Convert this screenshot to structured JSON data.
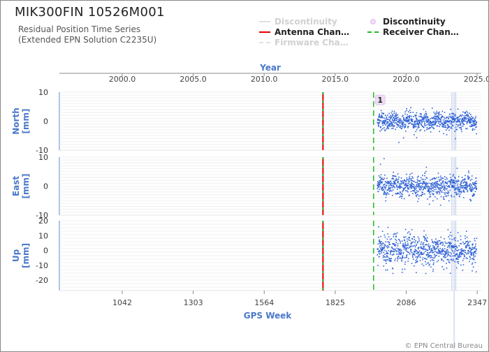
{
  "header": {
    "title": "MIK300FIN 10526M001",
    "subtitle_line1": "Residual Position Time Series",
    "subtitle_line2": "(Extended EPN Solution C2235U)"
  },
  "legend": [
    {
      "label": "Discontinuity",
      "style": "faded-line",
      "color": "#d8d8d8"
    },
    {
      "label": "Antenna Chan…",
      "style": "solid",
      "color": "#e00000"
    },
    {
      "label": "Firmware Cha…",
      "style": "dashed-faded",
      "color": "#d8d8d8"
    },
    {
      "label": "Discontinuity",
      "style": "dot",
      "color": "#e8c8f0"
    },
    {
      "label": "Receiver Chan…",
      "style": "dashed",
      "color": "#22bb22"
    }
  ],
  "credit": "© EPN Central Bureau",
  "chart_data": {
    "type": "scatter",
    "top_axis": {
      "label": "Year",
      "ticks": [
        "2000.0",
        "2005.0",
        "2010.0",
        "2015.0",
        "2020.0",
        "2025.0"
      ],
      "tick_values": [
        2000.0,
        2005.0,
        2010.0,
        2015.0,
        2020.0,
        2025.0
      ]
    },
    "bottom_axis": {
      "label": "GPS Week",
      "ticks": [
        "1042",
        "1303",
        "1564",
        "1825",
        "2086",
        "2347"
      ],
      "tick_values": [
        1042,
        1303,
        1564,
        1825,
        2086,
        2347
      ],
      "range": [
        811,
        2362
      ]
    },
    "panels": [
      {
        "name": "North",
        "unit": "[mm]",
        "ylim": [
          -10,
          10
        ],
        "ticks": [
          "10",
          "0",
          "-10"
        ],
        "tick_values": [
          10,
          0,
          -10
        ],
        "spread": 1.5,
        "start_week": 1980,
        "end_week": 2345
      },
      {
        "name": "East",
        "unit": "[mm]",
        "ylim": [
          -10,
          10
        ],
        "ticks": [
          "10",
          "0",
          "-10"
        ],
        "tick_values": [
          10,
          0,
          -10
        ],
        "spread": 1.8,
        "start_week": 1980,
        "end_week": 2345
      },
      {
        "name": "Up",
        "unit": "[mm]",
        "ylim": [
          -27,
          20
        ],
        "ticks": [
          "20",
          "10",
          "0",
          "-10",
          "-20"
        ],
        "tick_values": [
          20,
          10,
          0,
          -10,
          -20
        ],
        "spread": 5,
        "start_week": 1980,
        "end_week": 2345
      }
    ],
    "antenna_change_week": 1780,
    "receiver_change_week": 1966,
    "discontinuity_weeks": [
      2254,
      2262,
      2268
    ],
    "discontinuity_marker": {
      "label": "1",
      "week": 1985
    },
    "series_color": "#2f62d6"
  }
}
